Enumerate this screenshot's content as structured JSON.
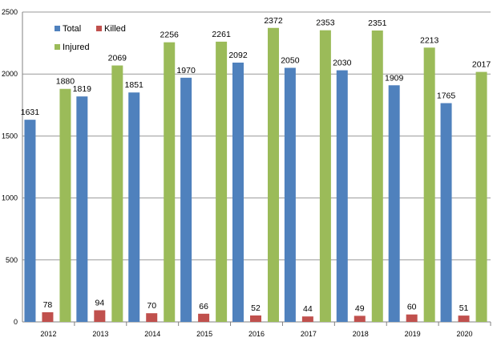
{
  "chart_data": {
    "type": "bar",
    "categories": [
      "2012",
      "2013",
      "2014",
      "2015",
      "2016",
      "2017",
      "2018",
      "2019",
      "2020"
    ],
    "series": [
      {
        "name": "Total",
        "color": "#4F81BD",
        "values": [
          1631,
          1819,
          1851,
          1970,
          2092,
          2050,
          2030,
          1909,
          1765
        ]
      },
      {
        "name": "Killed",
        "color": "#C0504D",
        "values": [
          78,
          94,
          70,
          66,
          52,
          44,
          49,
          60,
          51
        ]
      },
      {
        "name": "Injured",
        "color": "#9BBB59",
        "values": [
          1880,
          2069,
          2256,
          2261,
          2372,
          2353,
          2351,
          2213,
          2017
        ]
      }
    ],
    "ylim": [
      0,
      2500
    ],
    "yticks": [
      0,
      500,
      1000,
      1500,
      2000,
      2500
    ],
    "grid": true,
    "legend_position": "top-left",
    "xlabel": "",
    "ylabel": "",
    "title": ""
  }
}
